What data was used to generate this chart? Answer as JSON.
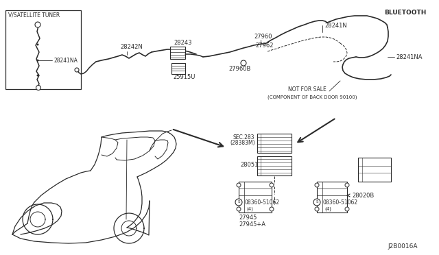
{
  "bg_color": "#ffffff",
  "line_color": "#2a2a2a",
  "fig_width": 6.4,
  "fig_height": 3.72,
  "dpi": 100,
  "labels": {
    "satellite_box": "V/SATELLITE TUNER",
    "bluetooth": "BLUETOOTH",
    "not_for_sale": "NOT FOR SALE",
    "component_note": "(COMPONENT OF BACK DOOR 90100)",
    "sec_283": "SEC.283",
    "sec_283b": "(28383M)",
    "diagram_code": "J2B0016A"
  },
  "parts": {
    "28241NA_sat": "28241NA",
    "28242N": "28242N",
    "28243": "28243",
    "25915U": "25915U",
    "27960": "27960",
    "27962": "27962",
    "27960B": "27960B",
    "28241N": "28241N",
    "28241NA_bt": "28241NA",
    "28051": "28051",
    "08360_left": "08360-51062",
    "27945": "27945",
    "27945A": "27945+A",
    "28020B": "28020B",
    "08360_right": "08360-51062"
  }
}
